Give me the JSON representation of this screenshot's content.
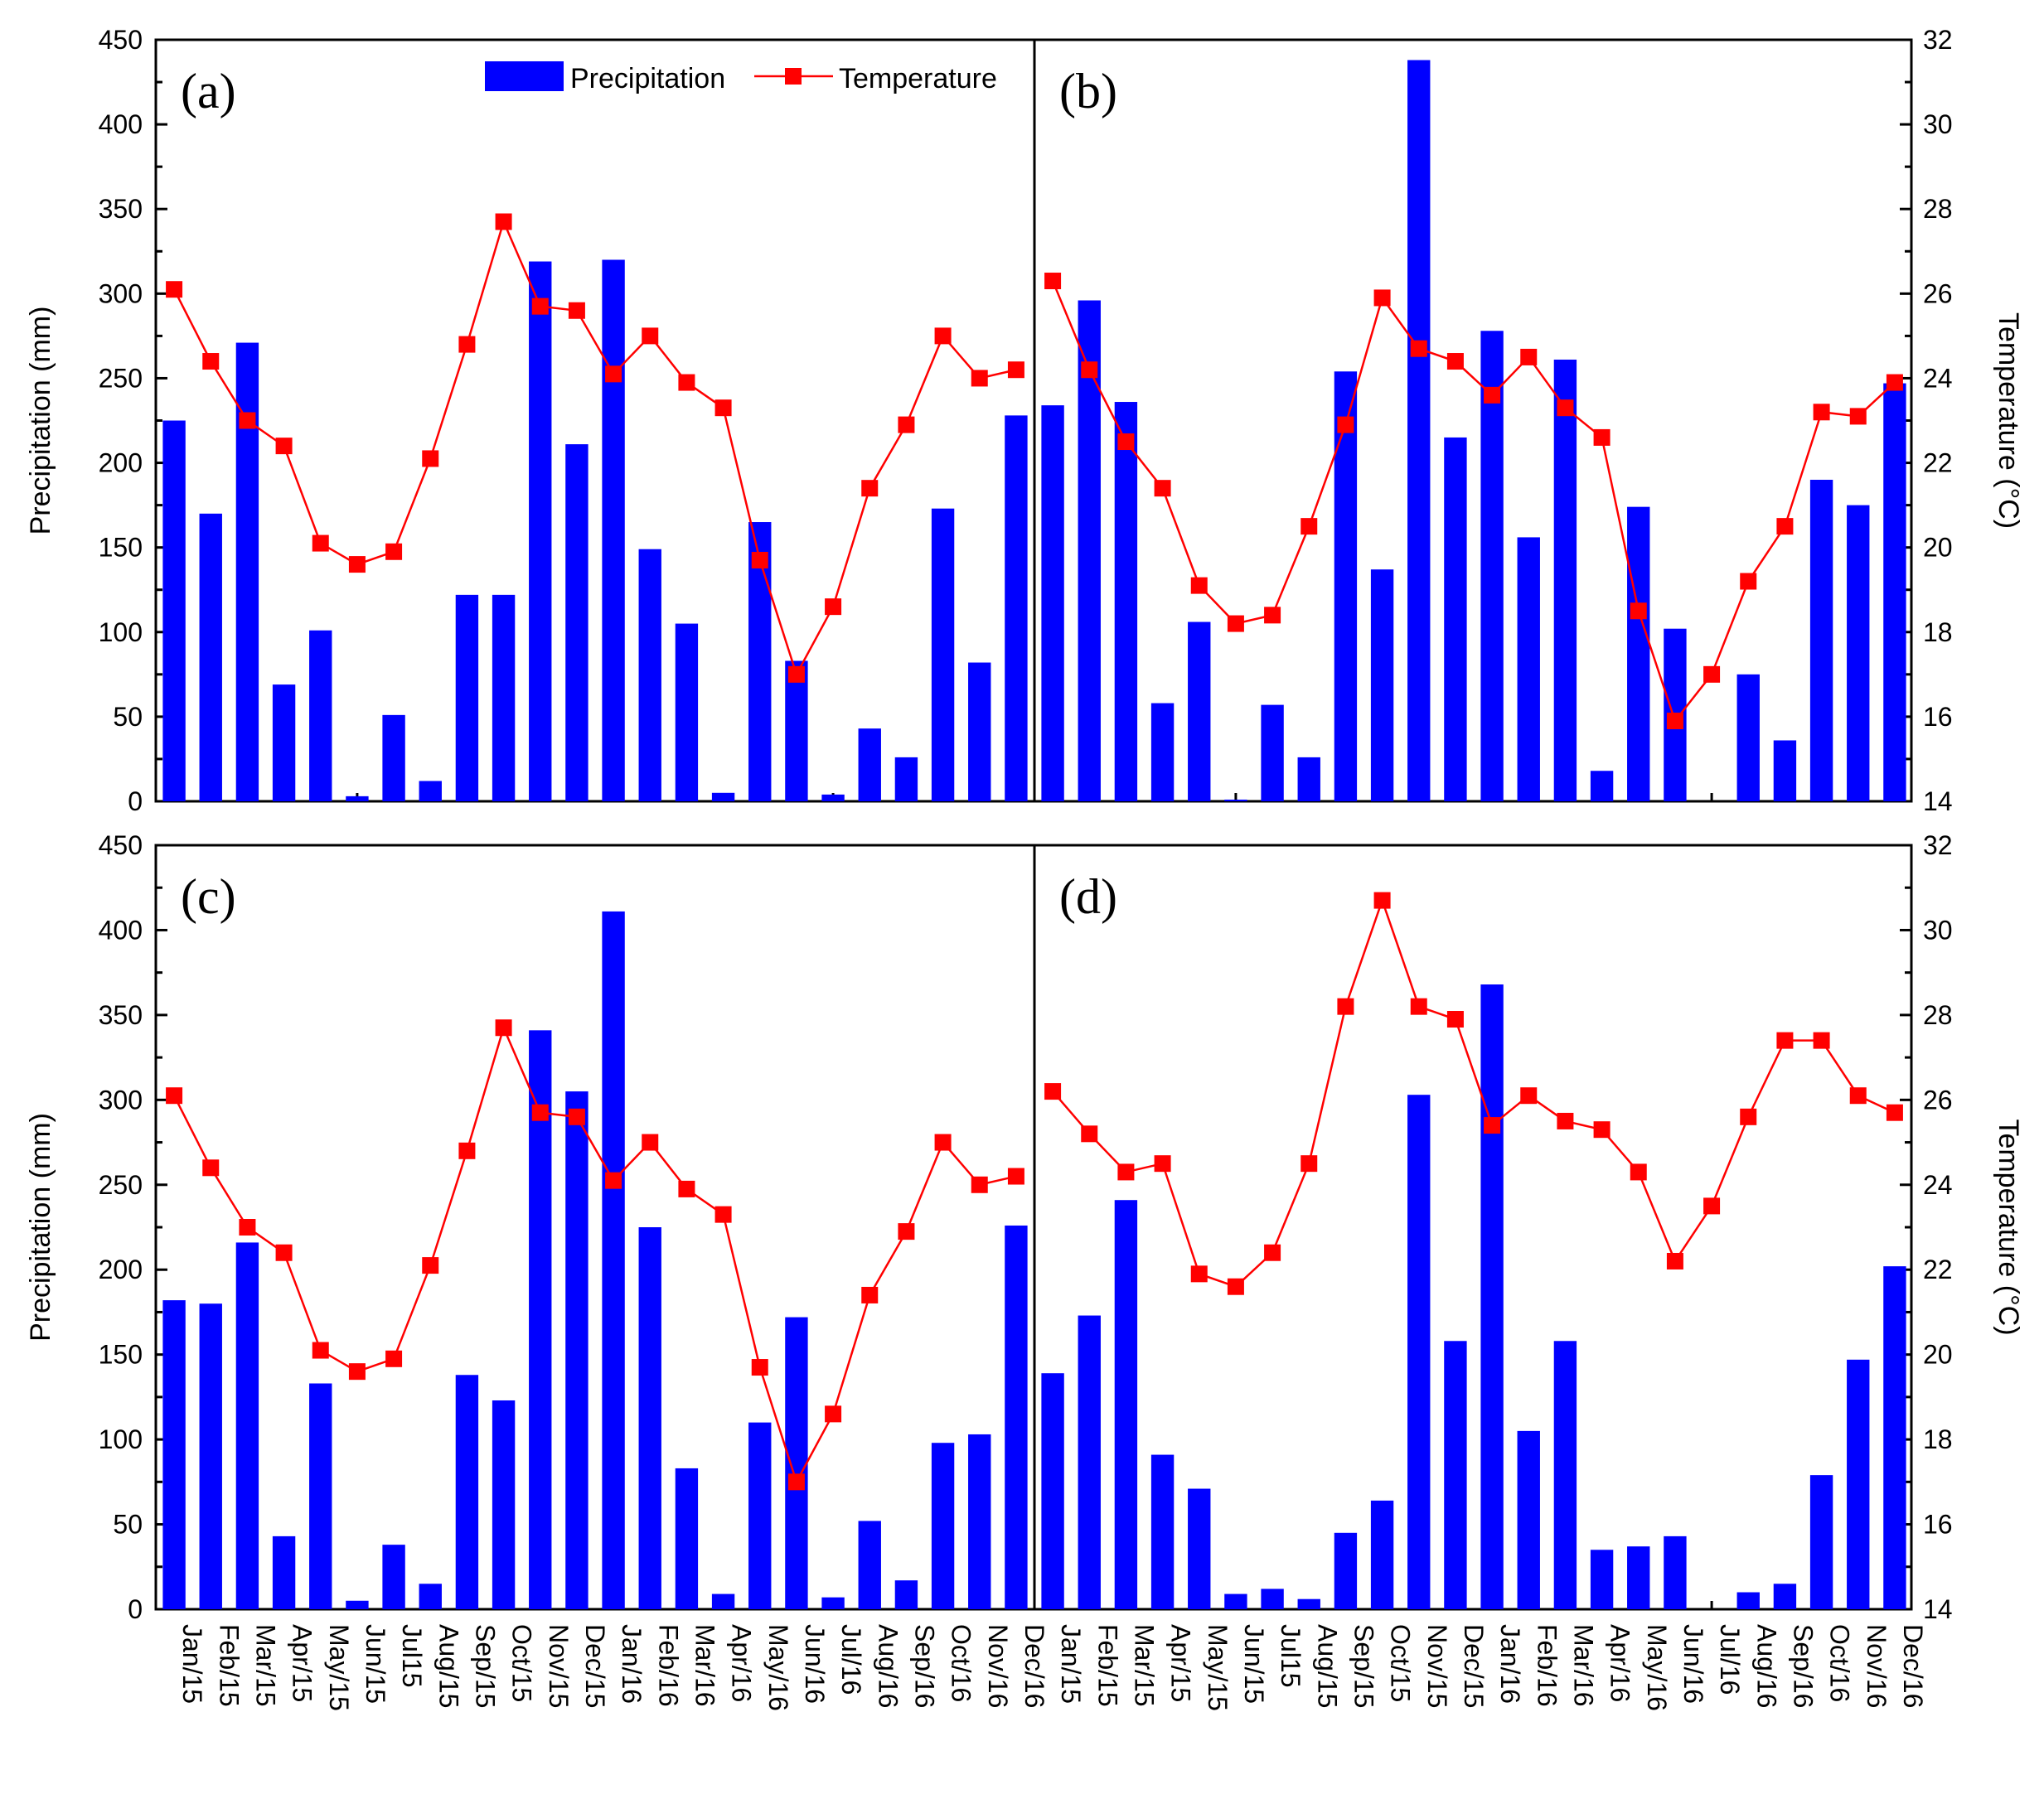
{
  "chart_data": {
    "type": "bar+line",
    "layout": "2x2 panels sharing axes",
    "categories": [
      "Jan/15",
      "Feb/15",
      "Mar/15",
      "Apr/15",
      "May/15",
      "Jun/15",
      "Jul15",
      "Aug/15",
      "Sep/15",
      "Oct/15",
      "Nov/15",
      "Dec/15",
      "Jan/16",
      "Feb/16",
      "Mar/16",
      "Apr/16",
      "May/16",
      "Jun/16",
      "Jul/16",
      "Aug/16",
      "Sep/16",
      "Oct/16",
      "Nov/16",
      "Dec/16"
    ],
    "ylabel_left": "Precipitation (mm)",
    "ylabel_right": "Temperature (°C)",
    "ylim_left": [
      0,
      450
    ],
    "ylim_right": [
      14,
      32
    ],
    "yticks_left": [
      "0",
      "50",
      "100",
      "150",
      "200",
      "250",
      "300",
      "350",
      "400",
      "450"
    ],
    "yticks_right": [
      "14",
      "16",
      "18",
      "20",
      "22",
      "24",
      "26",
      "28",
      "30",
      "32"
    ],
    "legend": {
      "precipitation": "Precipitation",
      "temperature": "Temperature"
    },
    "panels": [
      {
        "label": "(a)",
        "precipitation": [
          225,
          170,
          271,
          69,
          101,
          3,
          51,
          12,
          122,
          122,
          319,
          211,
          320,
          149,
          105,
          5,
          165,
          83,
          4,
          43,
          26,
          173,
          82,
          228
        ],
        "temperature": [
          26.1,
          24.4,
          23.0,
          22.4,
          20.1,
          19.6,
          19.9,
          22.1,
          24.8,
          27.7,
          25.7,
          25.6,
          24.1,
          25.0,
          23.9,
          23.3,
          19.7,
          17.0,
          18.6,
          21.4,
          22.9,
          25.0,
          24.0,
          24.2
        ]
      },
      {
        "label": "(b)",
        "precipitation": [
          234,
          296,
          236,
          58,
          106,
          1,
          57,
          26,
          254,
          137,
          438,
          215,
          278,
          156,
          261,
          18,
          174,
          102,
          0,
          75,
          36,
          190,
          175,
          247
        ],
        "temperature": [
          26.3,
          24.2,
          22.5,
          21.4,
          19.1,
          18.2,
          18.4,
          20.5,
          22.9,
          25.9,
          24.7,
          24.4,
          23.6,
          24.5,
          23.3,
          22.6,
          18.5,
          15.9,
          17.0,
          19.2,
          20.5,
          23.2,
          23.1,
          23.9
        ]
      },
      {
        "label": "(c)",
        "precipitation": [
          182,
          180,
          216,
          43,
          133,
          5,
          38,
          15,
          138,
          123,
          341,
          305,
          411,
          225,
          83,
          9,
          110,
          172,
          7,
          52,
          17,
          98,
          103,
          226
        ],
        "temperature": [
          26.1,
          24.4,
          23.0,
          22.4,
          20.1,
          19.6,
          19.9,
          22.1,
          24.8,
          27.7,
          25.7,
          25.6,
          24.1,
          25.0,
          23.9,
          23.3,
          19.7,
          17.0,
          18.6,
          21.4,
          22.9,
          25.0,
          24.0,
          24.2
        ]
      },
      {
        "label": "(d)",
        "precipitation": [
          139,
          173,
          241,
          91,
          71,
          9,
          12,
          6,
          45,
          64,
          303,
          158,
          368,
          105,
          158,
          35,
          37,
          43,
          0,
          10,
          15,
          79,
          147,
          202
        ],
        "temperature": [
          26.2,
          25.2,
          24.3,
          24.5,
          21.9,
          21.6,
          22.4,
          24.5,
          28.2,
          30.7,
          28.2,
          27.9,
          25.4,
          26.1,
          25.5,
          25.3,
          24.3,
          22.2,
          23.5,
          25.6,
          27.4,
          27.4,
          26.1,
          25.7
        ]
      }
    ]
  },
  "colors": {
    "precipitation": "#0000ff",
    "temperature": "#ff0000"
  }
}
